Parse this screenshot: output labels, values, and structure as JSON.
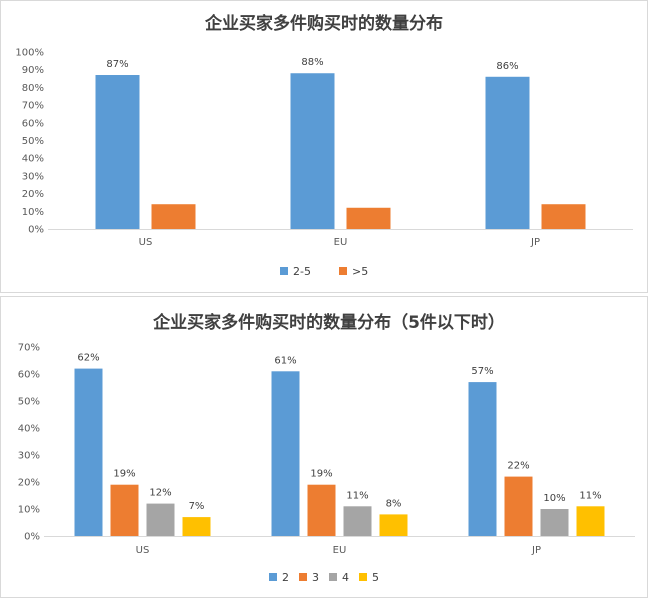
{
  "chart_data": [
    {
      "type": "bar",
      "title": "企业买家多件购买时的数量分布",
      "categories": [
        "US",
        "EU",
        "JP"
      ],
      "series": [
        {
          "name": "2-5",
          "values": [
            87,
            88,
            86
          ],
          "labels": [
            "87%",
            "88%",
            "86%"
          ],
          "color": "#5B9BD5"
        },
        {
          "name": ">5",
          "values": [
            14,
            12,
            14
          ],
          "labels": [
            "",
            "",
            ""
          ],
          "color": "#ED7D31"
        }
      ],
      "yticks": [
        "0%",
        "10%",
        "20%",
        "30%",
        "40%",
        "50%",
        "60%",
        "70%",
        "80%",
        "90%",
        "100%"
      ],
      "ylim": [
        0,
        100
      ],
      "grid": false,
      "legend": "bottom"
    },
    {
      "type": "bar",
      "title": "企业买家多件购买时的数量分布（5件以下时）",
      "categories": [
        "US",
        "EU",
        "JP"
      ],
      "series": [
        {
          "name": "2",
          "values": [
            62,
            61,
            57
          ],
          "labels": [
            "62%",
            "61%",
            "57%"
          ],
          "color": "#5B9BD5"
        },
        {
          "name": "3",
          "values": [
            19,
            19,
            22
          ],
          "labels": [
            "19%",
            "19%",
            "22%"
          ],
          "color": "#ED7D31"
        },
        {
          "name": "4",
          "values": [
            12,
            11,
            10
          ],
          "labels": [
            "12%",
            "11%",
            "10%"
          ],
          "color": "#A5A5A5"
        },
        {
          "name": "5",
          "values": [
            7,
            8,
            11
          ],
          "labels": [
            "7%",
            "8%",
            "11%"
          ],
          "color": "#FFC000"
        }
      ],
      "yticks": [
        "0%",
        "10%",
        "20%",
        "30%",
        "40%",
        "50%",
        "60%",
        "70%"
      ],
      "ylim": [
        0,
        70
      ],
      "grid": false,
      "legend": "bottom"
    }
  ]
}
